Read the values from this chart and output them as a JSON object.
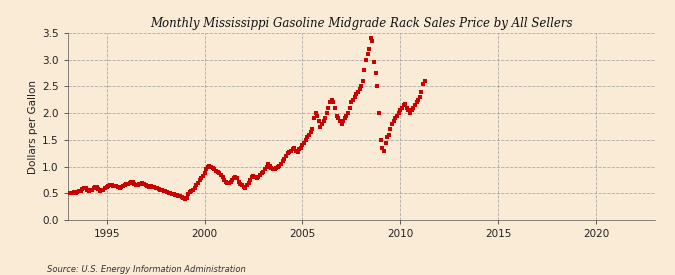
{
  "title": "Monthly Mississippi Gasoline Midgrade Rack Sales Price by All Sellers",
  "ylabel": "Dollars per Gallon",
  "source": "Source: U.S. Energy Information Administration",
  "background_color": "#faebd7",
  "plot_background_color": "#faebd7",
  "dot_color": "#cc0000",
  "grid_color": "#999999",
  "xlim_start": 1993.0,
  "xlim_end": 2023.0,
  "ylim": [
    0.0,
    3.5
  ],
  "yticks": [
    0.0,
    0.5,
    1.0,
    1.5,
    2.0,
    2.5,
    3.0,
    3.5
  ],
  "xticks": [
    1995,
    2000,
    2005,
    2010,
    2015,
    2020
  ],
  "data": [
    [
      1993.08,
      0.5
    ],
    [
      1993.17,
      0.51
    ],
    [
      1993.25,
      0.5
    ],
    [
      1993.33,
      0.52
    ],
    [
      1993.42,
      0.51
    ],
    [
      1993.5,
      0.52
    ],
    [
      1993.58,
      0.54
    ],
    [
      1993.67,
      0.55
    ],
    [
      1993.75,
      0.58
    ],
    [
      1993.83,
      0.6
    ],
    [
      1993.92,
      0.59
    ],
    [
      1994.0,
      0.57
    ],
    [
      1994.08,
      0.55
    ],
    [
      1994.17,
      0.56
    ],
    [
      1994.25,
      0.57
    ],
    [
      1994.33,
      0.6
    ],
    [
      1994.42,
      0.62
    ],
    [
      1994.5,
      0.61
    ],
    [
      1994.58,
      0.58
    ],
    [
      1994.67,
      0.55
    ],
    [
      1994.75,
      0.56
    ],
    [
      1994.83,
      0.57
    ],
    [
      1994.92,
      0.6
    ],
    [
      1995.0,
      0.62
    ],
    [
      1995.08,
      0.64
    ],
    [
      1995.17,
      0.66
    ],
    [
      1995.25,
      0.65
    ],
    [
      1995.33,
      0.63
    ],
    [
      1995.42,
      0.64
    ],
    [
      1995.5,
      0.63
    ],
    [
      1995.58,
      0.61
    ],
    [
      1995.67,
      0.6
    ],
    [
      1995.75,
      0.62
    ],
    [
      1995.83,
      0.63
    ],
    [
      1995.92,
      0.65
    ],
    [
      1996.0,
      0.67
    ],
    [
      1996.08,
      0.68
    ],
    [
      1996.17,
      0.7
    ],
    [
      1996.25,
      0.72
    ],
    [
      1996.33,
      0.71
    ],
    [
      1996.42,
      0.68
    ],
    [
      1996.5,
      0.66
    ],
    [
      1996.58,
      0.65
    ],
    [
      1996.67,
      0.67
    ],
    [
      1996.75,
      0.68
    ],
    [
      1996.83,
      0.69
    ],
    [
      1996.92,
      0.67
    ],
    [
      1997.0,
      0.65
    ],
    [
      1997.08,
      0.63
    ],
    [
      1997.17,
      0.62
    ],
    [
      1997.25,
      0.63
    ],
    [
      1997.33,
      0.62
    ],
    [
      1997.42,
      0.61
    ],
    [
      1997.5,
      0.6
    ],
    [
      1997.58,
      0.59
    ],
    [
      1997.67,
      0.58
    ],
    [
      1997.75,
      0.57
    ],
    [
      1997.83,
      0.56
    ],
    [
      1997.92,
      0.55
    ],
    [
      1998.0,
      0.54
    ],
    [
      1998.08,
      0.52
    ],
    [
      1998.17,
      0.51
    ],
    [
      1998.25,
      0.5
    ],
    [
      1998.33,
      0.49
    ],
    [
      1998.42,
      0.48
    ],
    [
      1998.5,
      0.47
    ],
    [
      1998.58,
      0.46
    ],
    [
      1998.67,
      0.45
    ],
    [
      1998.75,
      0.44
    ],
    [
      1998.83,
      0.43
    ],
    [
      1998.92,
      0.42
    ],
    [
      1999.0,
      0.4
    ],
    [
      1999.08,
      0.42
    ],
    [
      1999.17,
      0.48
    ],
    [
      1999.25,
      0.52
    ],
    [
      1999.33,
      0.55
    ],
    [
      1999.42,
      0.57
    ],
    [
      1999.5,
      0.6
    ],
    [
      1999.58,
      0.65
    ],
    [
      1999.67,
      0.7
    ],
    [
      1999.75,
      0.75
    ],
    [
      1999.83,
      0.78
    ],
    [
      1999.92,
      0.82
    ],
    [
      2000.0,
      0.88
    ],
    [
      2000.08,
      0.95
    ],
    [
      2000.17,
      1.0
    ],
    [
      2000.25,
      1.02
    ],
    [
      2000.33,
      1.0
    ],
    [
      2000.42,
      0.98
    ],
    [
      2000.5,
      0.95
    ],
    [
      2000.58,
      0.92
    ],
    [
      2000.67,
      0.9
    ],
    [
      2000.75,
      0.88
    ],
    [
      2000.83,
      0.85
    ],
    [
      2000.92,
      0.8
    ],
    [
      2001.0,
      0.75
    ],
    [
      2001.08,
      0.72
    ],
    [
      2001.17,
      0.7
    ],
    [
      2001.25,
      0.7
    ],
    [
      2001.33,
      0.72
    ],
    [
      2001.42,
      0.75
    ],
    [
      2001.5,
      0.78
    ],
    [
      2001.58,
      0.8
    ],
    [
      2001.67,
      0.78
    ],
    [
      2001.75,
      0.72
    ],
    [
      2001.83,
      0.68
    ],
    [
      2001.92,
      0.65
    ],
    [
      2002.0,
      0.62
    ],
    [
      2002.08,
      0.6
    ],
    [
      2002.17,
      0.65
    ],
    [
      2002.25,
      0.7
    ],
    [
      2002.33,
      0.75
    ],
    [
      2002.42,
      0.8
    ],
    [
      2002.5,
      0.82
    ],
    [
      2002.58,
      0.8
    ],
    [
      2002.67,
      0.78
    ],
    [
      2002.75,
      0.8
    ],
    [
      2002.83,
      0.85
    ],
    [
      2002.92,
      0.88
    ],
    [
      2003.0,
      0.9
    ],
    [
      2003.08,
      0.95
    ],
    [
      2003.17,
      1.0
    ],
    [
      2003.25,
      1.05
    ],
    [
      2003.33,
      1.02
    ],
    [
      2003.42,
      0.98
    ],
    [
      2003.5,
      0.95
    ],
    [
      2003.58,
      0.95
    ],
    [
      2003.67,
      0.98
    ],
    [
      2003.75,
      1.0
    ],
    [
      2003.83,
      1.02
    ],
    [
      2003.92,
      1.05
    ],
    [
      2004.0,
      1.1
    ],
    [
      2004.08,
      1.15
    ],
    [
      2004.17,
      1.2
    ],
    [
      2004.25,
      1.25
    ],
    [
      2004.33,
      1.28
    ],
    [
      2004.42,
      1.3
    ],
    [
      2004.5,
      1.32
    ],
    [
      2004.58,
      1.35
    ],
    [
      2004.67,
      1.3
    ],
    [
      2004.75,
      1.28
    ],
    [
      2004.83,
      1.32
    ],
    [
      2004.92,
      1.35
    ],
    [
      2005.0,
      1.4
    ],
    [
      2005.08,
      1.45
    ],
    [
      2005.17,
      1.5
    ],
    [
      2005.25,
      1.55
    ],
    [
      2005.33,
      1.6
    ],
    [
      2005.42,
      1.65
    ],
    [
      2005.5,
      1.7
    ],
    [
      2005.58,
      1.9
    ],
    [
      2005.67,
      2.0
    ],
    [
      2005.75,
      1.95
    ],
    [
      2005.83,
      1.85
    ],
    [
      2005.92,
      1.75
    ],
    [
      2006.0,
      1.8
    ],
    [
      2006.08,
      1.85
    ],
    [
      2006.17,
      1.9
    ],
    [
      2006.25,
      2.0
    ],
    [
      2006.33,
      2.1
    ],
    [
      2006.42,
      2.2
    ],
    [
      2006.5,
      2.25
    ],
    [
      2006.58,
      2.2
    ],
    [
      2006.67,
      2.1
    ],
    [
      2006.75,
      1.95
    ],
    [
      2006.83,
      1.9
    ],
    [
      2006.92,
      1.85
    ],
    [
      2007.0,
      1.8
    ],
    [
      2007.08,
      1.85
    ],
    [
      2007.17,
      1.9
    ],
    [
      2007.25,
      1.95
    ],
    [
      2007.33,
      2.0
    ],
    [
      2007.42,
      2.1
    ],
    [
      2007.5,
      2.2
    ],
    [
      2007.58,
      2.25
    ],
    [
      2007.67,
      2.3
    ],
    [
      2007.75,
      2.35
    ],
    [
      2007.83,
      2.4
    ],
    [
      2007.92,
      2.45
    ],
    [
      2008.0,
      2.5
    ],
    [
      2008.08,
      2.6
    ],
    [
      2008.17,
      2.8
    ],
    [
      2008.25,
      3.0
    ],
    [
      2008.33,
      3.1
    ],
    [
      2008.42,
      3.2
    ],
    [
      2008.5,
      3.4
    ],
    [
      2008.58,
      3.35
    ],
    [
      2008.67,
      2.95
    ],
    [
      2008.75,
      2.75
    ],
    [
      2008.83,
      2.5
    ],
    [
      2008.92,
      2.0
    ],
    [
      2009.0,
      1.5
    ],
    [
      2009.08,
      1.35
    ],
    [
      2009.17,
      1.3
    ],
    [
      2009.25,
      1.45
    ],
    [
      2009.33,
      1.55
    ],
    [
      2009.42,
      1.6
    ],
    [
      2009.5,
      1.7
    ],
    [
      2009.58,
      1.8
    ],
    [
      2009.67,
      1.85
    ],
    [
      2009.75,
      1.9
    ],
    [
      2009.83,
      1.95
    ],
    [
      2009.92,
      2.0
    ],
    [
      2010.0,
      2.05
    ],
    [
      2010.08,
      2.1
    ],
    [
      2010.17,
      2.15
    ],
    [
      2010.25,
      2.18
    ],
    [
      2010.33,
      2.1
    ],
    [
      2010.42,
      2.05
    ],
    [
      2010.5,
      2.0
    ],
    [
      2010.58,
      2.05
    ],
    [
      2010.67,
      2.1
    ],
    [
      2010.75,
      2.15
    ],
    [
      2010.83,
      2.2
    ],
    [
      2010.92,
      2.25
    ],
    [
      2011.0,
      2.3
    ],
    [
      2011.08,
      2.4
    ],
    [
      2011.17,
      2.55
    ],
    [
      2011.25,
      2.6
    ]
  ]
}
